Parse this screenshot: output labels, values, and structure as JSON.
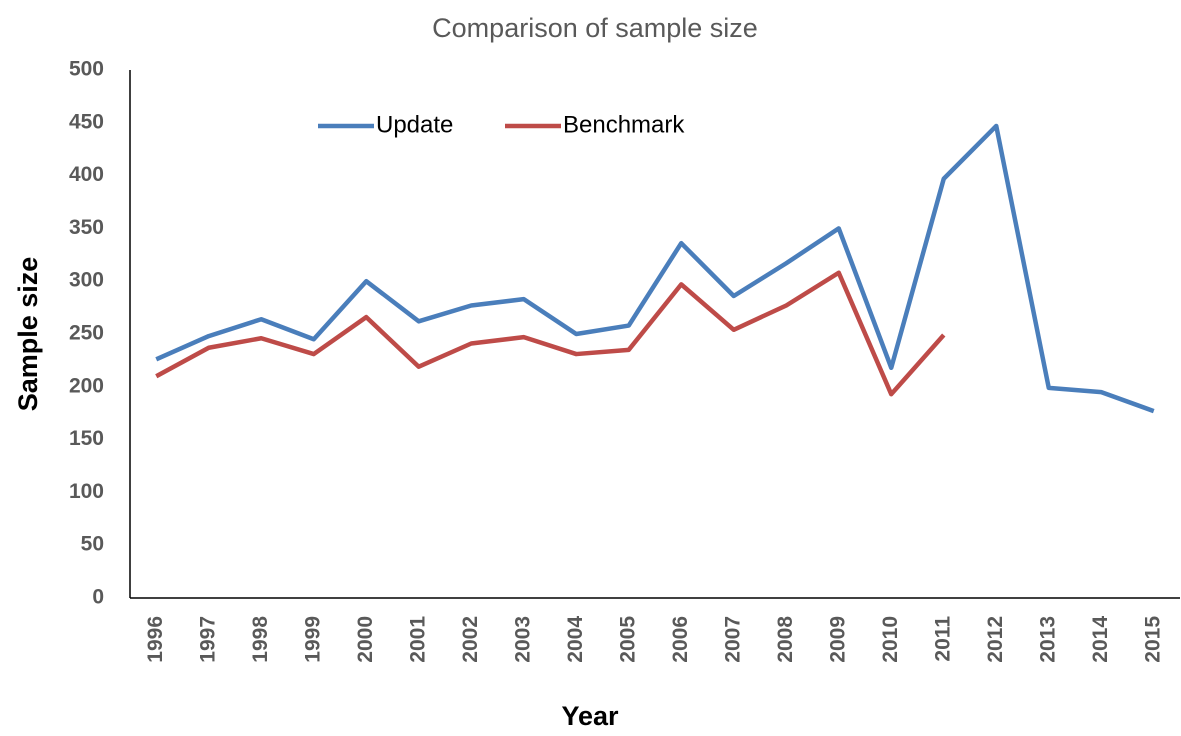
{
  "chart_data": {
    "type": "line",
    "title": "Comparison of sample size",
    "x_label": "Year",
    "y_label": "Sample size",
    "categories": [
      "1996",
      "1997",
      "1998",
      "1999",
      "2000",
      "2001",
      "2002",
      "2003",
      "2004",
      "2005",
      "2006",
      "2007",
      "2008",
      "2009",
      "2010",
      "2011",
      "2012",
      "2013",
      "2014",
      "2015"
    ],
    "series": [
      {
        "name": "Update",
        "color": "#4a7ebb",
        "values": [
          226,
          248,
          264,
          245,
          300,
          262,
          277,
          283,
          250,
          258,
          336,
          286,
          317,
          350,
          218,
          397,
          447,
          199,
          195,
          177
        ]
      },
      {
        "name": "Benchmark",
        "color": "#be4b48",
        "values": [
          210,
          237,
          246,
          231,
          266,
          219,
          241,
          247,
          231,
          235,
          297,
          254,
          277,
          308,
          193,
          249,
          null,
          null,
          null,
          null
        ]
      }
    ],
    "ylim": [
      0,
      500
    ],
    "yticks": [
      0,
      50,
      100,
      150,
      200,
      250,
      300,
      350,
      400,
      450,
      500
    ],
    "grid": false
  }
}
